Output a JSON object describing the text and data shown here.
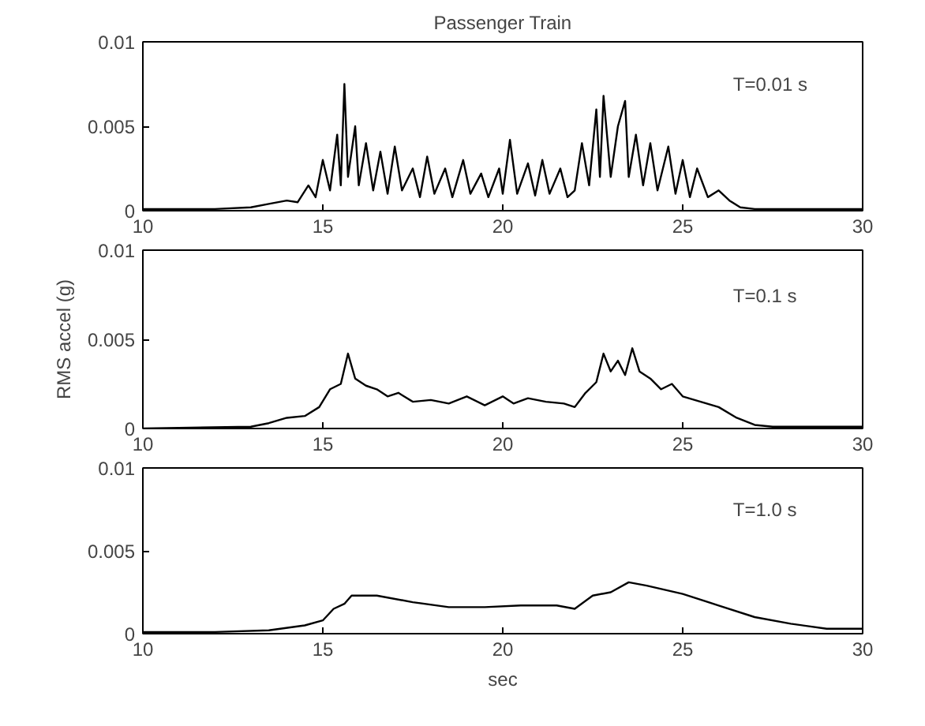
{
  "chart_data": [
    {
      "type": "line",
      "title": "Passenger Train",
      "annotations": [
        "T=0.01 s"
      ],
      "xlim": [
        10,
        30
      ],
      "xticks": [
        10,
        15,
        20,
        25,
        30
      ],
      "ylim": [
        0,
        0.01
      ],
      "yticks": [
        0,
        0.005,
        0.01
      ],
      "grid": false,
      "series": [
        {
          "color": "#000000",
          "x": [
            10,
            12,
            13,
            13.5,
            14,
            14.3,
            14.6,
            14.8,
            15,
            15.2,
            15.4,
            15.5,
            15.6,
            15.7,
            15.9,
            16.0,
            16.2,
            16.4,
            16.6,
            16.8,
            17.0,
            17.2,
            17.5,
            17.7,
            17.9,
            18.1,
            18.4,
            18.6,
            18.9,
            19.1,
            19.4,
            19.6,
            19.9,
            20.0,
            20.2,
            20.4,
            20.7,
            20.9,
            21.1,
            21.3,
            21.6,
            21.8,
            22.0,
            22.2,
            22.4,
            22.6,
            22.7,
            22.8,
            23.0,
            23.2,
            23.4,
            23.5,
            23.7,
            23.9,
            24.1,
            24.3,
            24.6,
            24.8,
            25.0,
            25.2,
            25.4,
            25.7,
            26.0,
            26.3,
            26.6,
            27,
            30
          ],
          "values": [
            0.0001,
            0.0001,
            0.0002,
            0.0004,
            0.0006,
            0.0005,
            0.0015,
            0.0008,
            0.003,
            0.0012,
            0.0045,
            0.0015,
            0.0075,
            0.002,
            0.005,
            0.0015,
            0.004,
            0.0012,
            0.0035,
            0.001,
            0.0038,
            0.0012,
            0.0025,
            0.0008,
            0.0032,
            0.001,
            0.0025,
            0.0008,
            0.003,
            0.001,
            0.0022,
            0.0008,
            0.0025,
            0.001,
            0.0042,
            0.001,
            0.0028,
            0.0009,
            0.003,
            0.001,
            0.0025,
            0.0008,
            0.0012,
            0.004,
            0.0015,
            0.006,
            0.002,
            0.0068,
            0.002,
            0.005,
            0.0065,
            0.002,
            0.0045,
            0.0015,
            0.004,
            0.0012,
            0.0038,
            0.001,
            0.003,
            0.0008,
            0.0025,
            0.0008,
            0.0012,
            0.0006,
            0.0002,
            0.0001,
            0.0001
          ]
        }
      ]
    },
    {
      "type": "line",
      "ylabel": "RMS accel (g)",
      "annotations": [
        "T=0.1 s"
      ],
      "xlim": [
        10,
        30
      ],
      "xticks": [
        10,
        15,
        20,
        25,
        30
      ],
      "ylim": [
        0,
        0.01
      ],
      "yticks": [
        0,
        0.005,
        0.01
      ],
      "grid": false,
      "series": [
        {
          "color": "#000000",
          "x": [
            10,
            13,
            13.5,
            14,
            14.5,
            14.9,
            15.2,
            15.5,
            15.7,
            15.9,
            16.2,
            16.5,
            16.8,
            17.1,
            17.5,
            18,
            18.5,
            19,
            19.5,
            20,
            20.3,
            20.7,
            21.2,
            21.7,
            22.0,
            22.3,
            22.6,
            22.8,
            23.0,
            23.2,
            23.4,
            23.6,
            23.8,
            24.1,
            24.4,
            24.7,
            25.0,
            25.5,
            26,
            26.5,
            27,
            27.5,
            30
          ],
          "values": [
            0,
            0.0001,
            0.0003,
            0.0006,
            0.0007,
            0.0012,
            0.0022,
            0.0025,
            0.0042,
            0.0028,
            0.0024,
            0.0022,
            0.0018,
            0.002,
            0.0015,
            0.0016,
            0.0014,
            0.0018,
            0.0013,
            0.0018,
            0.0014,
            0.0017,
            0.0015,
            0.0014,
            0.0012,
            0.002,
            0.0026,
            0.0042,
            0.0032,
            0.0038,
            0.003,
            0.0045,
            0.0032,
            0.0028,
            0.0022,
            0.0025,
            0.0018,
            0.0015,
            0.0012,
            0.0006,
            0.0002,
            0.0001,
            0.0001
          ]
        }
      ]
    },
    {
      "type": "line",
      "xlabel": "sec",
      "annotations": [
        "T=1.0 s"
      ],
      "xlim": [
        10,
        30
      ],
      "xticks": [
        10,
        15,
        20,
        25,
        30
      ],
      "ylim": [
        0,
        0.01
      ],
      "yticks": [
        0,
        0.005,
        0.01
      ],
      "grid": false,
      "series": [
        {
          "color": "#000000",
          "x": [
            10,
            12,
            13.5,
            14.5,
            15,
            15.3,
            15.6,
            15.8,
            16.5,
            17.5,
            18.5,
            19.5,
            20.5,
            21.5,
            22,
            22.5,
            23,
            23.5,
            24,
            25,
            26,
            27,
            28,
            29,
            30
          ],
          "values": [
            0.0001,
            0.0001,
            0.0002,
            0.0005,
            0.0008,
            0.0015,
            0.0018,
            0.0023,
            0.0023,
            0.0019,
            0.0016,
            0.0016,
            0.0017,
            0.0017,
            0.0015,
            0.0023,
            0.0025,
            0.0031,
            0.0029,
            0.0024,
            0.0017,
            0.001,
            0.0006,
            0.0003,
            0.0003
          ]
        }
      ]
    }
  ]
}
